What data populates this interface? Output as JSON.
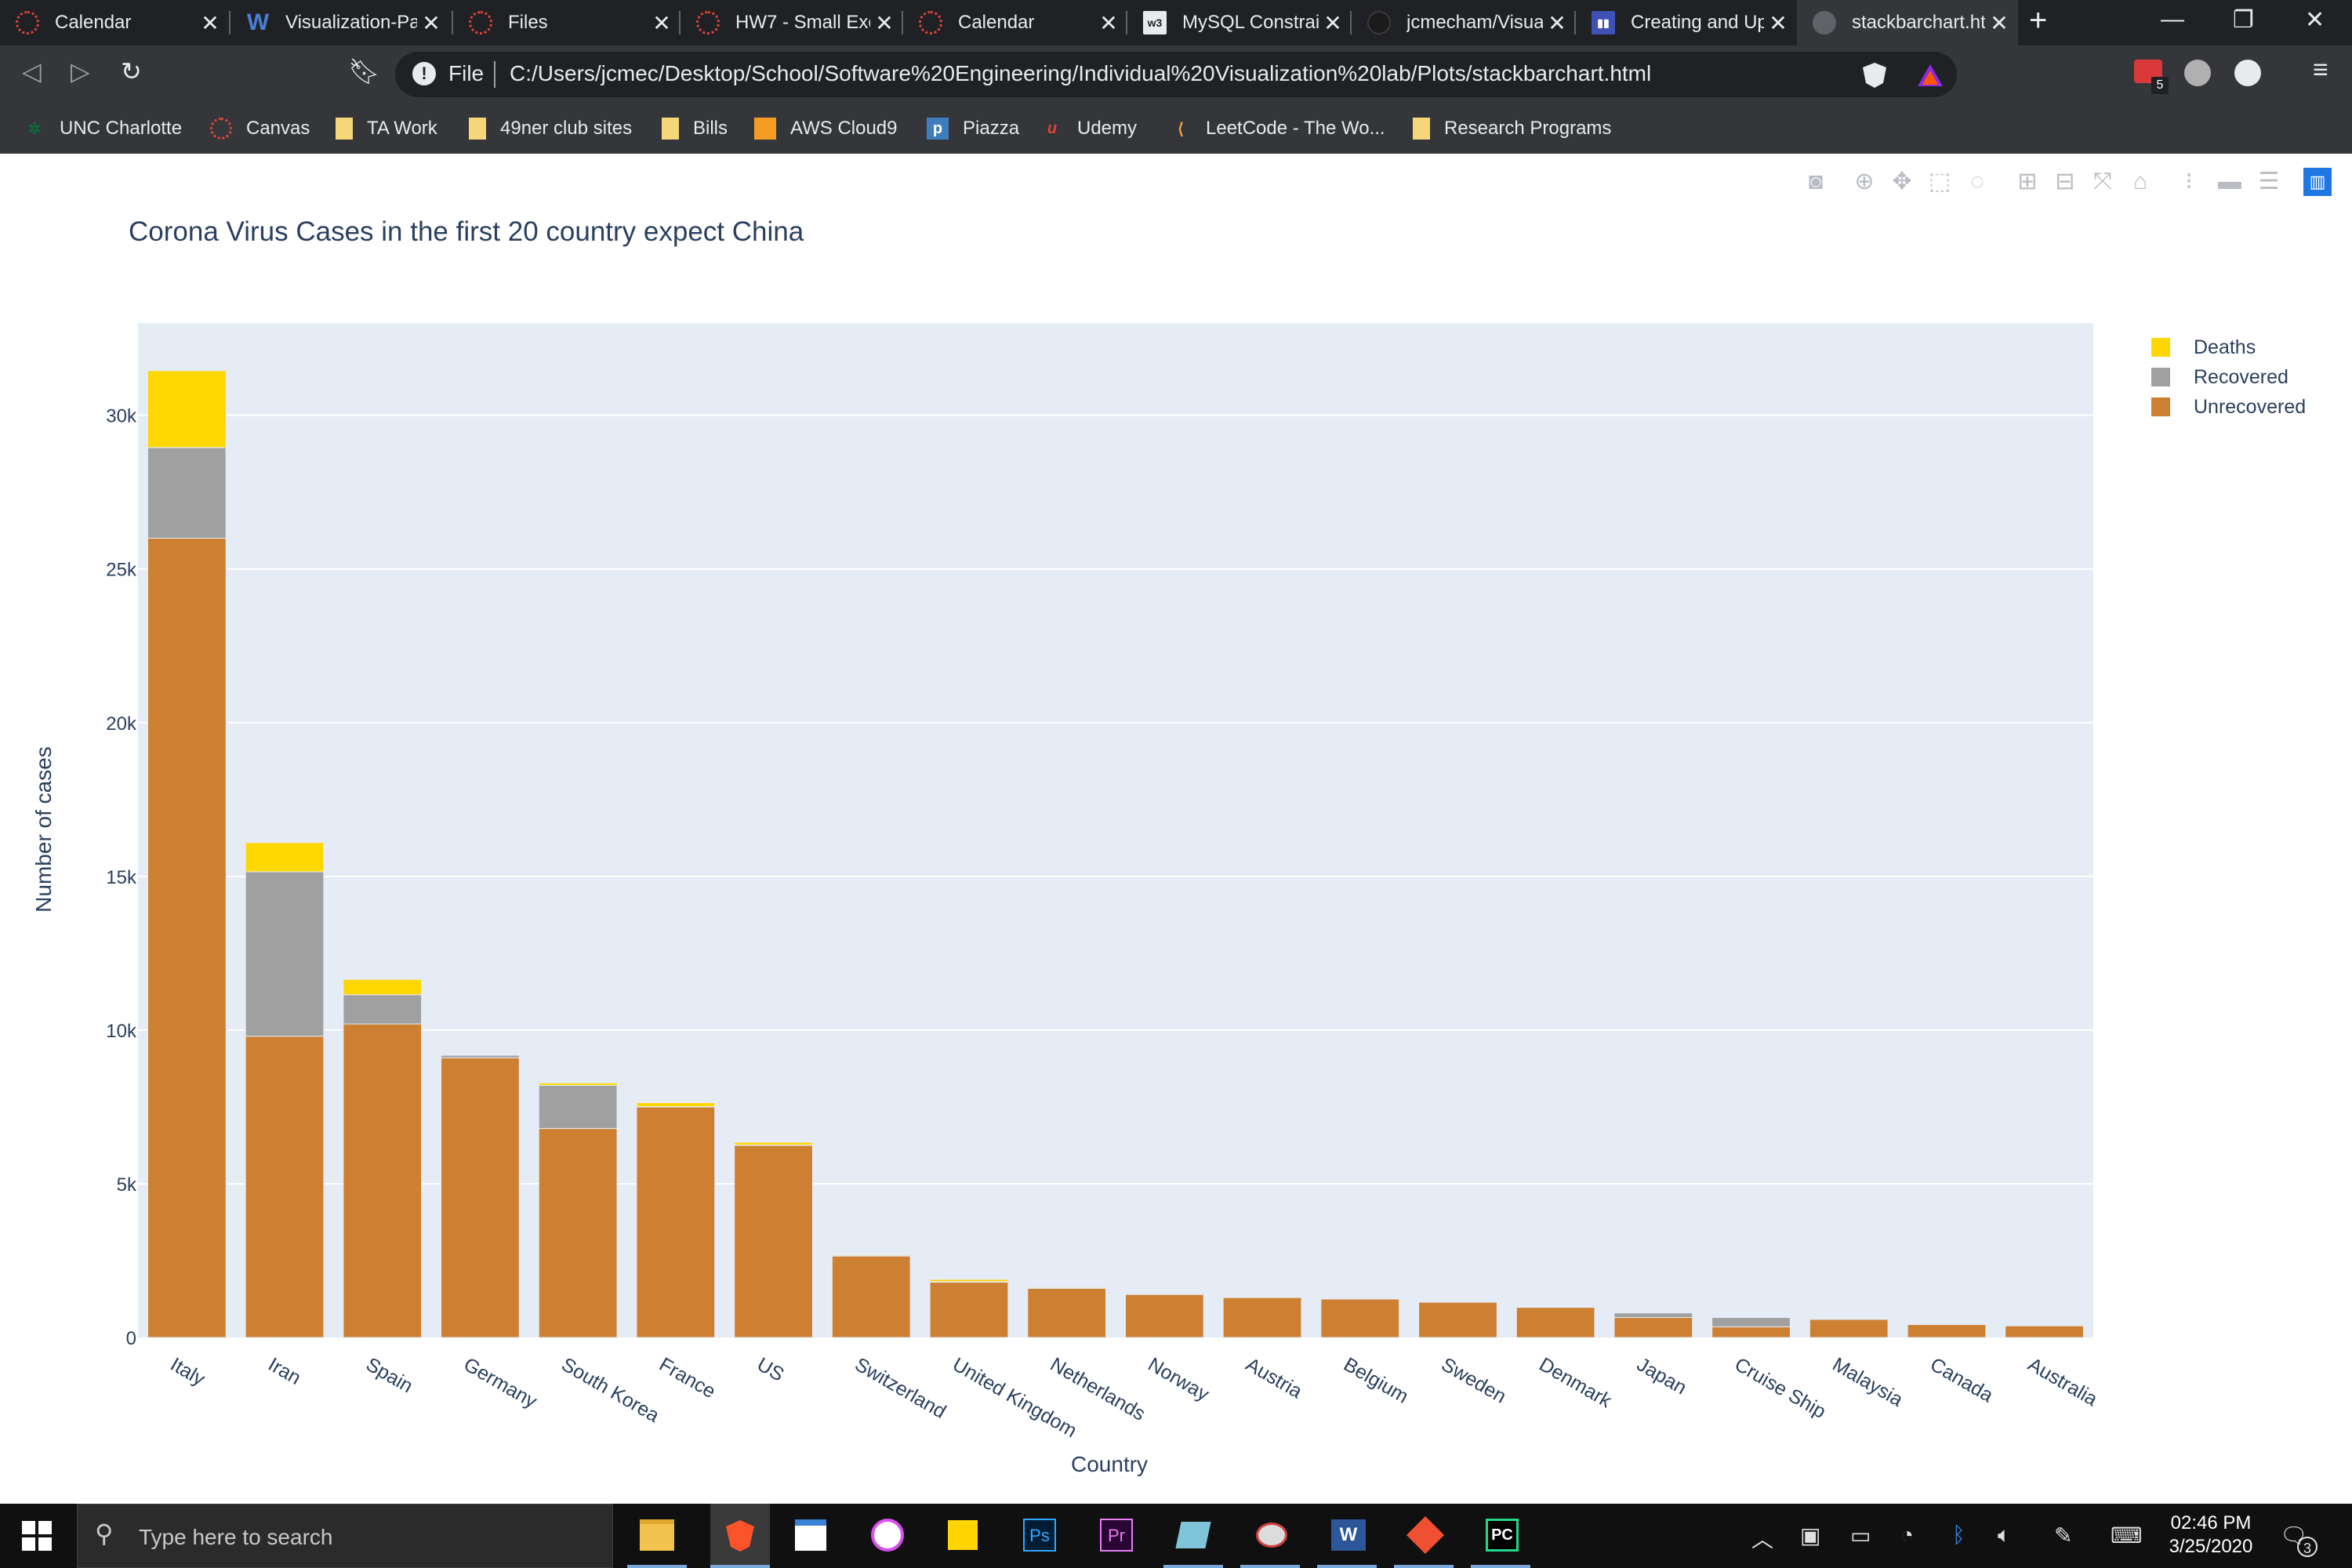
{
  "browser": {
    "tabs": [
      {
        "label": "Calendar",
        "icon": "canvas-icon",
        "active": false
      },
      {
        "label": "Visualization-Pa",
        "icon": "word-w-icon",
        "active": false
      },
      {
        "label": "Files",
        "icon": "canvas-icon",
        "active": false
      },
      {
        "label": "HW7 - Small Exc",
        "icon": "canvas-icon",
        "active": false
      },
      {
        "label": "Calendar",
        "icon": "canvas-icon",
        "active": false
      },
      {
        "label": "MySQL Constrai",
        "icon": "w3schools-icon",
        "active": false
      },
      {
        "label": "jcmecham/Visua",
        "icon": "github-icon",
        "active": false
      },
      {
        "label": "Creating and Up",
        "icon": "chart-studio-icon",
        "active": false
      },
      {
        "label": "stackbarchart.ht",
        "icon": "globe-icon",
        "active": true
      }
    ],
    "address": {
      "scheme": "File",
      "url": "C:/Users/jcmec/Desktop/School/Software%20Engineering/Individual%20Visualization%20lab/Plots/stackbarchart.html"
    },
    "extension_badge": "5",
    "bookmarks": [
      {
        "label": "UNC Charlotte",
        "icon": "unc-icon"
      },
      {
        "label": "Canvas",
        "icon": "canvas-icon"
      },
      {
        "label": "TA Work",
        "icon": "folder-icon"
      },
      {
        "label": "49ner club sites",
        "icon": "folder-icon"
      },
      {
        "label": "Bills",
        "icon": "folder-icon"
      },
      {
        "label": "AWS Cloud9",
        "icon": "aws-cube-icon"
      },
      {
        "label": "Piazza",
        "icon": "piazza-icon"
      },
      {
        "label": "Udemy",
        "icon": "udemy-icon"
      },
      {
        "label": "LeetCode - The Wo...",
        "icon": "leetcode-icon"
      },
      {
        "label": "Research Programs",
        "icon": "folder-icon"
      }
    ]
  },
  "chart_data": {
    "type": "bar",
    "barmode": "stack",
    "title": "Corona Virus Cases in the first 20 country expect China",
    "xlabel": "Country",
    "ylabel": "Number of cases",
    "ylim": [
      0,
      33000
    ],
    "yticks": [
      0,
      5000,
      10000,
      15000,
      20000,
      25000,
      30000
    ],
    "ytick_labels": [
      "0",
      "5k",
      "10k",
      "15k",
      "20k",
      "25k",
      "30k"
    ],
    "grid": true,
    "legend_position": "top-right",
    "background_color": "#e5ecf6",
    "categories": [
      "Italy",
      "Iran",
      "Spain",
      "Germany",
      "South Korea",
      "France",
      "US",
      "Switzerland",
      "United Kingdom",
      "Netherlands",
      "Norway",
      "Austria",
      "Belgium",
      "Sweden",
      "Denmark",
      "Japan",
      "Cruise Ship",
      "Malaysia",
      "Canada",
      "Australia"
    ],
    "series": [
      {
        "name": "Unrecovered",
        "color": "#cd7f32",
        "values": [
          26000,
          9800,
          10200,
          9100,
          6800,
          7500,
          6250,
          2650,
          1800,
          1600,
          1400,
          1300,
          1250,
          1150,
          980,
          650,
          350,
          590,
          420,
          380
        ]
      },
      {
        "name": "Recovered",
        "color": "#a0a0a0",
        "values": [
          2950,
          5350,
          950,
          80,
          1400,
          10,
          10,
          0,
          20,
          0,
          0,
          0,
          0,
          0,
          0,
          150,
          300,
          0,
          0,
          0
        ]
      },
      {
        "name": "Deaths",
        "color": "#ffd700",
        "values": [
          2500,
          950,
          500,
          20,
          80,
          130,
          90,
          30,
          70,
          30,
          10,
          10,
          10,
          10,
          10,
          20,
          10,
          10,
          10,
          10
        ]
      }
    ],
    "legend_order": [
      "Deaths",
      "Recovered",
      "Unrecovered"
    ]
  },
  "taskbar": {
    "search_placeholder": "Type here to search",
    "time": "02:46 PM",
    "date": "3/25/2020",
    "notification_count": "3",
    "apps": [
      "file-explorer-icon",
      "brave-icon",
      "calendar-app-icon",
      "itunes-icon",
      "sticky-notes-icon",
      "photoshop-icon",
      "premiere-icon",
      "notes-app-icon",
      "snipping-icon",
      "word-icon",
      "git-icon",
      "pycharm-icon"
    ]
  }
}
